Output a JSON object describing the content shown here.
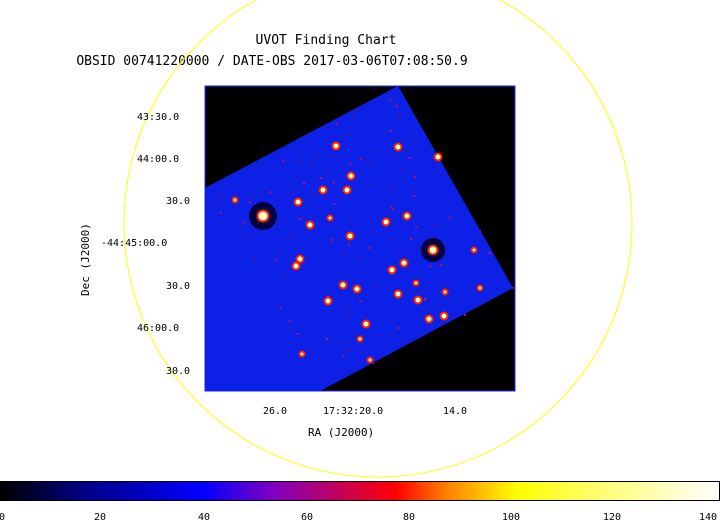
{
  "title": "UVOT Finding Chart",
  "subtitle": "OBSID 00741220000 / DATE-OBS 2017-03-06T07:08:50.9",
  "axes": {
    "ylabel": "Dec (J2000)",
    "xlabel": "RA (J2000)",
    "yticks": [
      "43:30.0",
      "44:00.0",
      "30.0",
      "-44:45:00.0",
      "30.0",
      "46:00.0",
      "30.0"
    ],
    "xticks": [
      "26.0",
      "17:32:20.0",
      "14.0"
    ]
  },
  "colorbar": {
    "ticks": [
      "0",
      "20",
      "40",
      "60",
      "80",
      "100",
      "120",
      "140"
    ],
    "colors": [
      "#000000",
      "#00008a",
      "#0000ff",
      "#ff0000",
      "#ffff00",
      "#ffffff"
    ]
  },
  "image_colors": {
    "background": "#0c20e6",
    "circle": "#ffff00",
    "frame": "#0000ff"
  }
}
